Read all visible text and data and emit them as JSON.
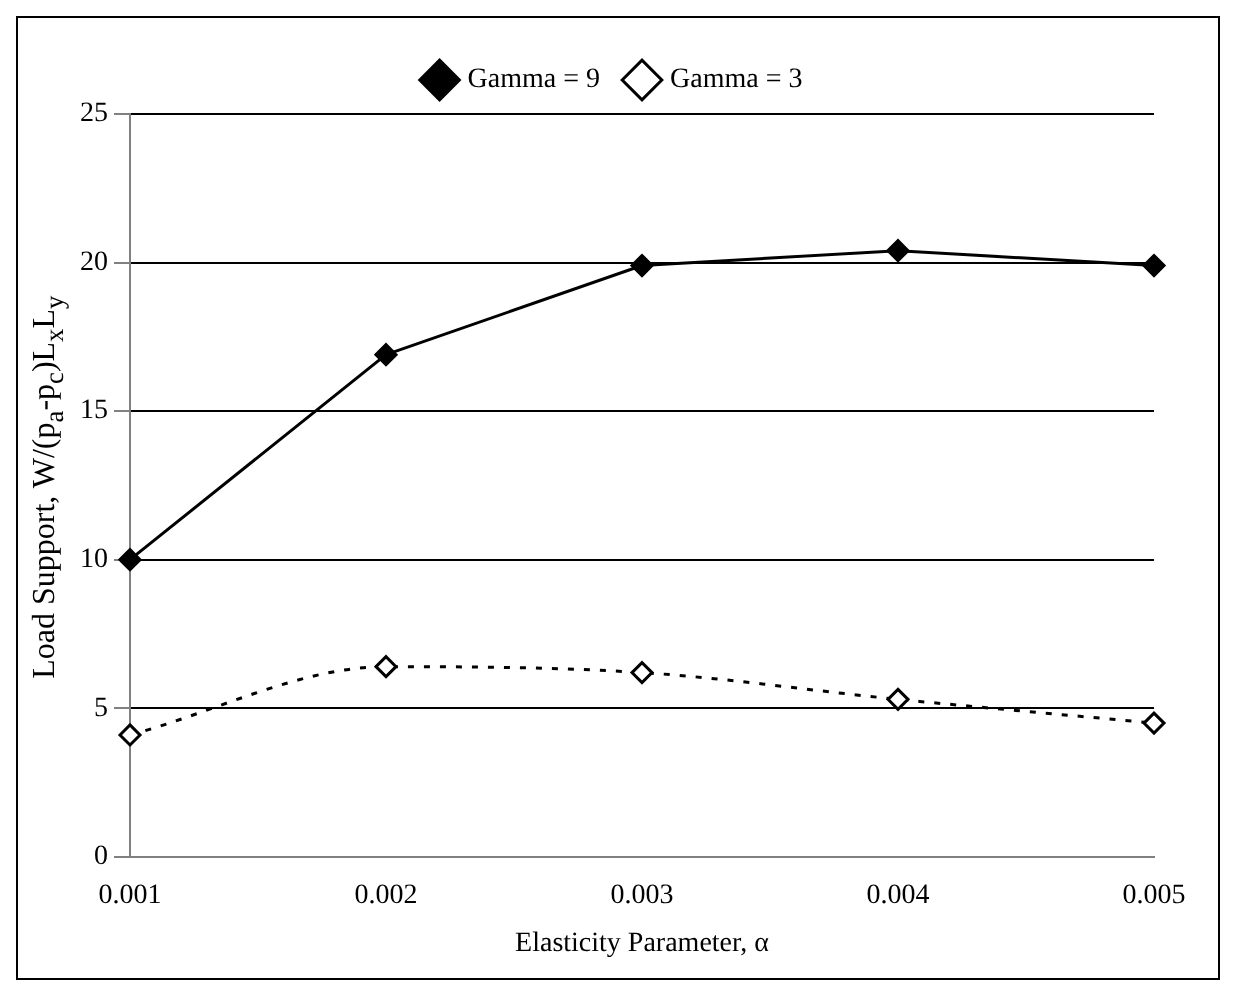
{
  "chart_data": {
    "type": "line",
    "xlabel": "Elasticity Parameter, α",
    "ylabel": "Load Support, W/(p$_{a}$-p$_{c}$)L$_{x}$L$_{y}$",
    "categories": [
      "0.001",
      "0.002",
      "0.003",
      "0.004",
      "0.005"
    ],
    "series": [
      {
        "name": "Gamma = 9",
        "color": "#000000",
        "values": [
          10,
          16.9,
          19.9,
          20.4,
          19.9
        ],
        "line_style": "solid",
        "marker": "diamond"
      },
      {
        "name": "Gamma = 3",
        "color": "#000000",
        "values": [
          4.1,
          6.4,
          6.2,
          5.3,
          4.5
        ],
        "line_style": "dotted",
        "marker": "diamond"
      }
    ],
    "ylim": [
      0,
      25
    ],
    "yticks": [
      0,
      5,
      10,
      15,
      20,
      25
    ],
    "grid": "y",
    "legend": "top"
  }
}
